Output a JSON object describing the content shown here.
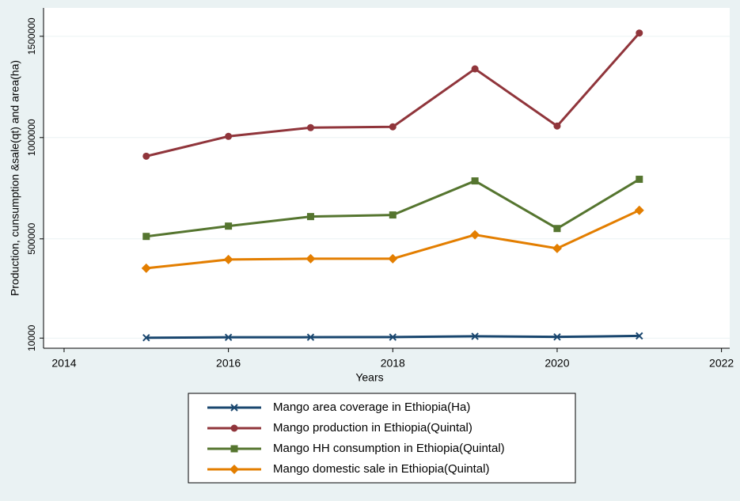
{
  "chart_data": {
    "type": "line",
    "x_label": "Years",
    "y_label": "Production, cunsumption &sale(qt) and area(ha)",
    "x": [
      2015,
      2016,
      2017,
      2018,
      2019,
      2020,
      2021
    ],
    "series": [
      {
        "name": "Mango area coverage in Ethiopia(Ha)",
        "color": "#1a476f",
        "marker": "x",
        "values": [
          12000,
          14000,
          14500,
          15000,
          19000,
          16000,
          21000
        ]
      },
      {
        "name": "Mango production in Ethiopia(Quintal)",
        "color": "#90353b",
        "marker": "circle",
        "values": [
          908000,
          1006000,
          1049000,
          1053000,
          1339000,
          1057000,
          1516000
        ]
      },
      {
        "name": "Mango HH consumption in Ethiopia(Quintal)",
        "color": "#55752f",
        "marker": "square",
        "values": [
          512000,
          563000,
          610000,
          618000,
          786000,
          551000,
          794000
        ]
      },
      {
        "name": "Mango domestic sale in Ethiopia(Quintal)",
        "color": "#e37e00",
        "marker": "diamond",
        "values": [
          355000,
          398000,
          402000,
          402000,
          520000,
          453000,
          641000
        ]
      }
    ],
    "xlim": [
      2013.75,
      2022.1
    ],
    "xticks": [
      2014,
      2016,
      2018,
      2020,
      2022
    ],
    "ylim": [
      -40000,
      1640000
    ],
    "yticks": [
      10000,
      500000,
      1000000,
      1500000
    ],
    "grid": true
  }
}
